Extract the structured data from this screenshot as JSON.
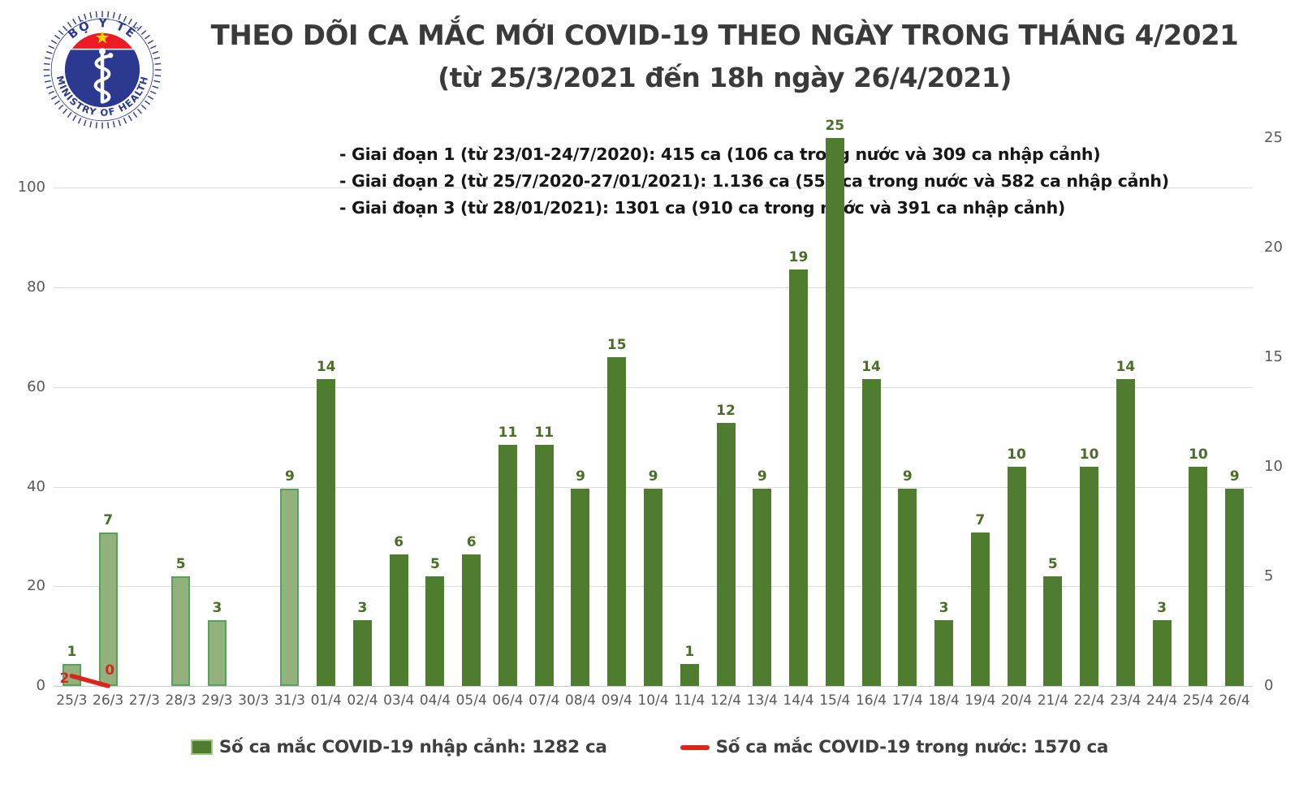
{
  "header": {
    "title": "THEO DÕI CA MẮC MỚI COVID-19 THEO NGÀY TRONG THÁNG 4/2021",
    "subtitle": "(từ 25/3/2021 đến 18h ngày 26/4/2021)"
  },
  "logo": {
    "top_text": "BỘ Y TẾ",
    "bottom_text": "MINISTRY OF HEALTH"
  },
  "annotations": {
    "line1": "- Giai đoạn 1 (từ 23/01-24/7/2020): 415 ca (106 ca trong nước và 309 ca nhập cảnh)",
    "line2": "- Giai đoạn 2 (từ 25/7/2020-27/01/2021): 1.136 ca (554 ca trong nước và 582 ca nhập cảnh)",
    "line3": "- Giai đoạn 3 (từ 28/01/2021): 1301 ca (910 ca trong nước và 391 ca nhập cảnh)"
  },
  "legend": {
    "bars_label": "Số ca mắc COVID-19 nhập cảnh: 1282 ca",
    "line_label": "Số ca mắc COVID-19 trong nước: 1570 ca"
  },
  "colors": {
    "bar_dark": "#4f7d30",
    "bar_light_fill": "#92b17c",
    "bar_light_border": "#58a05e",
    "bar_value_label": "#4a6e28",
    "line_red": "#d9251c",
    "axis_text": "#595959",
    "gridline": "#dcdcdc",
    "title_text": "#3a3a3a",
    "annotation_text": "#161616",
    "logo_blue": "#2b3990",
    "logo_red": "#ed1c24",
    "logo_star": "#ffd400"
  },
  "chart_data": {
    "type": "bar",
    "title": "THEO DÕI CA MẮC MỚI COVID-19 THEO NGÀY TRONG THÁNG 4/2021 (từ 25/3/2021 đến 18h ngày 26/4/2021)",
    "xlabel": "",
    "ylabel": "",
    "grid": true,
    "legend_position": "bottom",
    "categories": [
      "25/3",
      "26/3",
      "27/3",
      "28/3",
      "29/3",
      "30/3",
      "31/3",
      "01/4",
      "02/4",
      "03/4",
      "04/4",
      "05/4",
      "06/4",
      "07/4",
      "08/4",
      "09/4",
      "10/4",
      "11/4",
      "12/4",
      "13/4",
      "14/4",
      "15/4",
      "16/4",
      "17/4",
      "18/4",
      "19/4",
      "20/4",
      "21/4",
      "22/4",
      "23/4",
      "24/4",
      "25/4",
      "26/4"
    ],
    "series": [
      {
        "name": "Số ca mắc COVID-19 nhập cảnh",
        "total_label": "1282 ca",
        "type": "bar",
        "axis": "right",
        "values": [
          1,
          7,
          0,
          5,
          3,
          0,
          9,
          14,
          3,
          6,
          5,
          6,
          11,
          11,
          9,
          15,
          9,
          1,
          12,
          9,
          19,
          25,
          14,
          9,
          3,
          7,
          10,
          5,
          10,
          14,
          3,
          10,
          9
        ]
      },
      {
        "name": "Số ca mắc COVID-19 trong nước",
        "total_label": "1570 ca",
        "type": "line",
        "axis": "left",
        "values": [
          2,
          0,
          null,
          null,
          null,
          null,
          null,
          null,
          null,
          null,
          null,
          null,
          null,
          null,
          null,
          null,
          null,
          null,
          null,
          null,
          null,
          null,
          null,
          null,
          null,
          null,
          null,
          null,
          null,
          null,
          null,
          null,
          null
        ]
      }
    ],
    "left_axis": {
      "ticks": [
        0,
        20,
        40,
        60,
        80,
        100
      ],
      "max": 110
    },
    "right_axis": {
      "ticks": [
        0,
        5,
        10,
        15,
        20,
        25
      ],
      "max": 25
    },
    "light_bar_category_count": 7
  }
}
